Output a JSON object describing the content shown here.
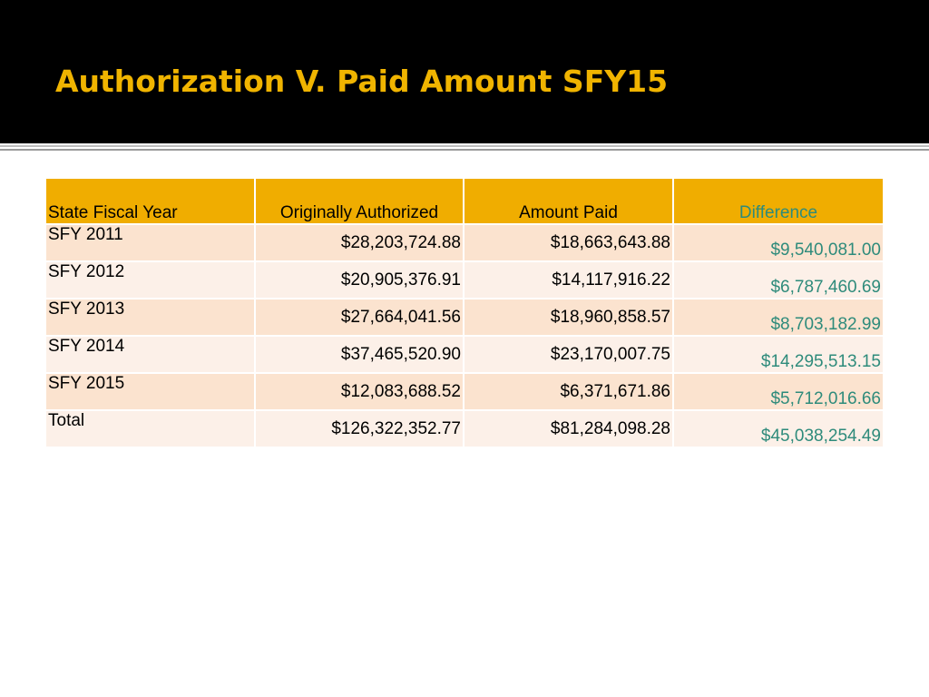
{
  "slide": {
    "title": "Authorization V. Paid Amount SFY15"
  },
  "table": {
    "headers": {
      "year": "State Fiscal Year",
      "authorized": "Originally Authorized",
      "paid": "Amount Paid",
      "difference": "Difference"
    },
    "rows": [
      {
        "year": "SFY 2011",
        "authorized": "$28,203,724.88",
        "paid": "$18,663,643.88",
        "difference": "$9,540,081.00"
      },
      {
        "year": "SFY 2012",
        "authorized": "$20,905,376.91",
        "paid": "$14,117,916.22",
        "difference": "$6,787,460.69"
      },
      {
        "year": "SFY 2013",
        "authorized": "$27,664,041.56",
        "paid": "$18,960,858.57",
        "difference": "$8,703,182.99"
      },
      {
        "year": "SFY 2014",
        "authorized": "$37,465,520.90",
        "paid": "$23,170,007.75",
        "difference": "$14,295,513.15"
      },
      {
        "year": "SFY 2015",
        "authorized": "$12,083,688.52",
        "paid": "$6,371,671.86",
        "difference": "$5,712,016.66"
      },
      {
        "year": "Total",
        "authorized": "$126,322,352.77",
        "paid": "$81,284,098.28",
        "difference": "$45,038,254.49"
      }
    ]
  },
  "colors": {
    "title_bar": "#000000",
    "title_text": "#f0b400",
    "header_fill": "#f0ad00",
    "row_odd": "#fbe3cf",
    "row_even": "#fcf0e8",
    "difference_text": "#2e8b7b"
  }
}
